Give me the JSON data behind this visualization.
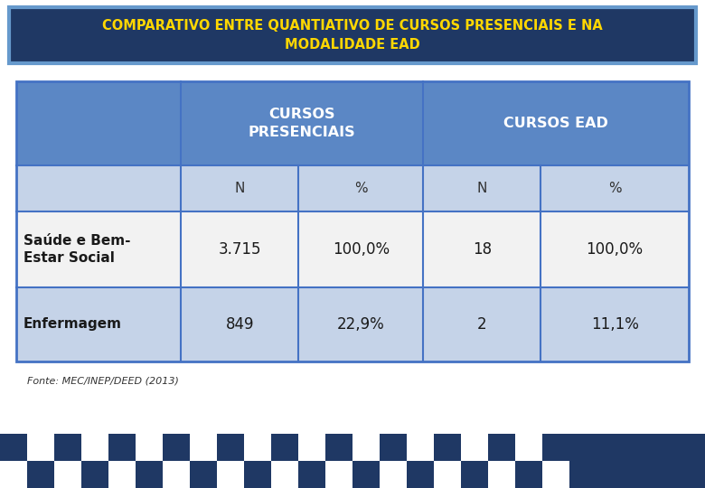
{
  "title_line1": "COMPARATIVO ENTRE QUANTIATIVO DE CURSOS PRESENCIAIS E NA",
  "title_line2": "MODALIDADE EAD",
  "title_bg_color": "#1F3864",
  "title_border_color": "#6699CC",
  "title_text_color": "#FFD700",
  "header1_text": "CURSOS\nPRESENCIAIS",
  "header2_text": "CURSOS EAD",
  "header_bg_color": "#5B87C5",
  "header_text_color": "#FFFFFF",
  "subheader_bg_color": "#C5D3E8",
  "subheader_text_color": "#333333",
  "row1_bg_color": "#F2F2F2",
  "row2_bg_color": "#C5D3E8",
  "row_label_col1": "Saúde e Bem-\nEstar Social",
  "row_label_col2": "Enfermagem",
  "data": [
    [
      "3.715",
      "100,0%",
      "18",
      "100,0%"
    ],
    [
      "849",
      "22,9%",
      "2",
      "11,1%"
    ]
  ],
  "source_text": "Fonte: MEC/INEP/DEED (2013)",
  "bg_color": "#FFFFFF",
  "table_border_color": "#4472C4",
  "col_labels": [
    "N",
    "%",
    "N",
    "%"
  ],
  "checker_blue": "#1F3864",
  "checker_white": "#FFFFFF",
  "banner_bg": "#1F3864"
}
